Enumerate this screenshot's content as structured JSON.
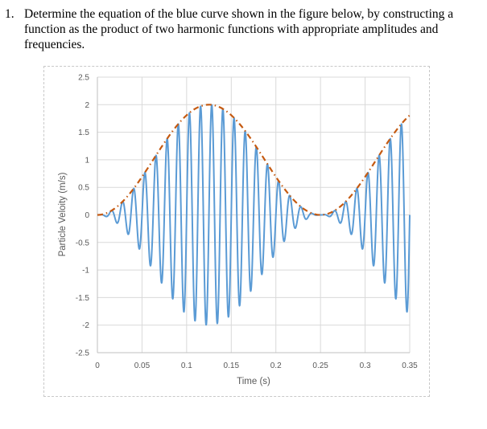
{
  "question": {
    "number": "1.",
    "text": "Determine the equation of the blue curve shown in the figure below, by constructing a function as the product of two harmonic functions with appropriate amplitudes and frequencies."
  },
  "colors": {
    "signal": "#5b9bd5",
    "envelope": "#c55a11",
    "grid": "#d9d9d9",
    "tick_text": "#595959",
    "frame_border": "#c8c8c8"
  },
  "chart_data": {
    "type": "line",
    "title": "",
    "xlabel": "Time (s)",
    "ylabel": "Particle Veloity (m/s)",
    "xlim": [
      0,
      0.35
    ],
    "ylim": [
      -2.5,
      2.5
    ],
    "x_ticks": [
      "0",
      "0.05",
      "0.1",
      "0.15",
      "0.2",
      "0.25",
      "0.3",
      "0.35"
    ],
    "y_ticks": [
      "2.5",
      "2",
      "1.5",
      "1",
      "0.5",
      "0",
      "-0.5",
      "-1",
      "-1.5",
      "-2",
      "-2.5"
    ],
    "grid": true,
    "legend": "none",
    "series": [
      {
        "name": "Particle velocity (blue)",
        "style": "solid",
        "color": "#5b9bd5",
        "model": "v(t) = (1 - cos(2*pi*4*t)) * sin(2*pi*80*t)",
        "carrier_frequency_hz": 80,
        "envelope_frequency_hz": 4,
        "peak_amplitude": 2,
        "x": [
          0,
          0.01,
          0.02,
          0.03,
          0.04,
          0.05,
          0.06,
          0.07,
          0.08,
          0.09,
          0.1,
          0.11,
          0.12,
          0.125,
          0.13,
          0.14,
          0.15,
          0.16,
          0.17,
          0.18,
          0.19,
          0.2,
          0.21,
          0.22,
          0.23,
          0.24,
          0.25,
          0.26,
          0.27,
          0.28,
          0.29,
          0.3,
          0.31,
          0.32,
          0.33,
          0.34,
          0.35
        ],
        "envelope_max": [
          0,
          0.063,
          0.239,
          0.496,
          0.791,
          1.077,
          1.309,
          1.482,
          1.59,
          1.64,
          1.707,
          1.813,
          1.934,
          2.0,
          1.934,
          1.813,
          1.707,
          1.59,
          1.482,
          1.309,
          1.077,
          0.791,
          0.496,
          0.239,
          0.063,
          0.006,
          0,
          0.063,
          0.239,
          0.496,
          0.791,
          1.077,
          1.309,
          1.482,
          1.59,
          1.687,
          1.809
        ]
      },
      {
        "name": "Envelope (orange dash-dot)",
        "style": "dash-dot",
        "color": "#c55a11",
        "model": "e(t) = 1 - cos(2*pi*4*t)",
        "x": [
          0,
          0.025,
          0.05,
          0.075,
          0.1,
          0.125,
          0.15,
          0.175,
          0.2,
          0.225,
          0.25,
          0.275,
          0.3,
          0.325,
          0.35
        ],
        "y": [
          0,
          0.191,
          0.691,
          1.309,
          1.809,
          2.0,
          1.809,
          1.309,
          0.691,
          0.191,
          0,
          0.191,
          0.691,
          1.309,
          1.809
        ]
      }
    ]
  }
}
